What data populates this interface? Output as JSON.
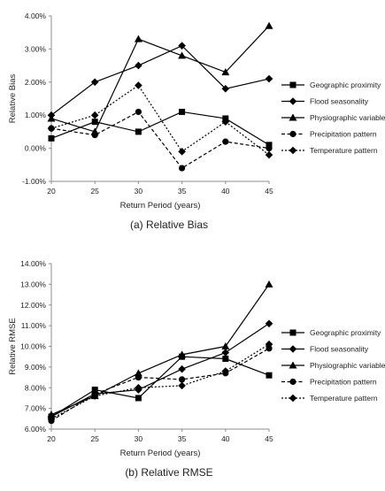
{
  "chart_data": [
    {
      "type": "line",
      "caption": "(a) Relative Bias",
      "xlabel": "Return Period (years)",
      "ylabel": "Relative Bias",
      "x": [
        20,
        25,
        30,
        35,
        40,
        45
      ],
      "ylim": [
        -1.0,
        4.0
      ],
      "ytick_values": [
        -1,
        0,
        1,
        2,
        3,
        4
      ],
      "yticks": [
        "-1.00%",
        "0.00%",
        "1.00%",
        "2.00%",
        "3.00%",
        "4.00%"
      ],
      "xticks": [
        "20",
        "25",
        "30",
        "35",
        "40",
        "45"
      ],
      "grid": false,
      "legend": "right",
      "series": [
        {
          "name": "Geographic proximity",
          "marker": "square",
          "dash": "solid",
          "values": [
            0.3,
            0.8,
            0.5,
            1.1,
            0.9,
            0.1
          ]
        },
        {
          "name": "Flood seasonality",
          "marker": "diamond",
          "dash": "solid",
          "values": [
            1.0,
            2.0,
            2.5,
            3.1,
            1.8,
            2.1
          ]
        },
        {
          "name": "Physiographic variables",
          "marker": "triangle",
          "dash": "solid",
          "values": [
            0.9,
            0.5,
            3.3,
            2.8,
            2.3,
            3.7
          ]
        },
        {
          "name": "Precipitation pattern",
          "marker": "circle",
          "dash": "dashed",
          "values": [
            0.6,
            0.4,
            1.1,
            -0.6,
            0.2,
            0.0
          ]
        },
        {
          "name": "Temperature pattern",
          "marker": "diamond",
          "dash": "dotted",
          "values": [
            0.6,
            1.0,
            1.9,
            -0.1,
            0.8,
            -0.2
          ]
        }
      ]
    },
    {
      "type": "line",
      "caption": "(b) Relative RMSE",
      "xlabel": "Return Period (years)",
      "ylabel": "Relative RMSE",
      "x": [
        20,
        25,
        30,
        35,
        40,
        45
      ],
      "ylim": [
        6.0,
        14.0
      ],
      "ytick_values": [
        6,
        7,
        8,
        9,
        10,
        11,
        12,
        13,
        14
      ],
      "yticks": [
        "6.00%",
        "7.00%",
        "8.00%",
        "9.00%",
        "10.00%",
        "11.00%",
        "12.00%",
        "13.00%",
        "14.00%"
      ],
      "xticks": [
        "20",
        "25",
        "30",
        "35",
        "40",
        "45"
      ],
      "grid": false,
      "legend": "right",
      "series": [
        {
          "name": "Geographic proximity",
          "marker": "square",
          "dash": "solid",
          "values": [
            6.6,
            7.9,
            7.5,
            9.5,
            9.4,
            8.6
          ]
        },
        {
          "name": "Flood seasonality",
          "marker": "diamond",
          "dash": "solid",
          "values": [
            6.6,
            7.7,
            7.9,
            8.9,
            9.7,
            11.1
          ]
        },
        {
          "name": "Physiographic variables",
          "marker": "triangle",
          "dash": "solid",
          "values": [
            6.7,
            7.6,
            8.7,
            9.6,
            10.0,
            13.0
          ]
        },
        {
          "name": "Precipitation pattern",
          "marker": "circle",
          "dash": "dashed",
          "values": [
            6.4,
            7.7,
            8.5,
            8.4,
            8.7,
            9.9
          ]
        },
        {
          "name": "Temperature pattern",
          "marker": "diamond",
          "dash": "dotted",
          "values": [
            6.5,
            7.6,
            8.0,
            8.1,
            8.8,
            10.1
          ]
        }
      ]
    }
  ]
}
